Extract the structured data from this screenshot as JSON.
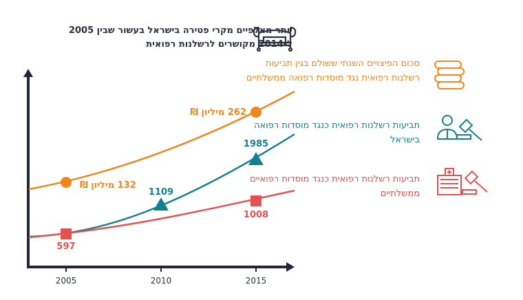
{
  "title": "יותר מאלפיים מקרי פטירה בישראל בעשור שבין 2005 ל-2014 מקושרים לרשלנות רפואית",
  "chart_data": {
    "type": "line",
    "x": [
      2005,
      2010,
      2015
    ],
    "xlabel": "",
    "ylabel": "",
    "grid": false,
    "legend_placement": "right",
    "series": [
      {
        "name": "סכום הפיצויים השנתי ששולם בגין תביעות רשלנות רפואית נגד מוסדות רפואה ממשלתיים",
        "color": "#f0861e",
        "marker": "circle",
        "points": [
          {
            "x": 2005,
            "y": 132,
            "label": "132 מיליון ₪"
          },
          {
            "x": 2015,
            "y": 262,
            "label": "262 מיליון ₪"
          }
        ]
      },
      {
        "name": "תביעות רשלנות רפואית כנגד מוסדות רפואה בישראל",
        "color": "#14808f",
        "marker": "triangle",
        "points": [
          {
            "x": 2010,
            "y": 1109,
            "label": "1109"
          },
          {
            "x": 2015,
            "y": 1985,
            "label": "1985"
          }
        ]
      },
      {
        "name": "תביעות רשלנות רפואית כנגד מוסדות רפואיים ממשלתיים",
        "color": "#e55050",
        "marker": "square",
        "points": [
          {
            "x": 2005,
            "y": 597,
            "label": "597"
          },
          {
            "x": 2015,
            "y": 1008,
            "label": "1008"
          }
        ]
      }
    ],
    "tick_labels": [
      "2005",
      "2010",
      "2015"
    ]
  },
  "icons": [
    "hospital-bed-icon",
    "coins-icon",
    "doctor-gavel-icon",
    "hospital-gavel-icon"
  ]
}
